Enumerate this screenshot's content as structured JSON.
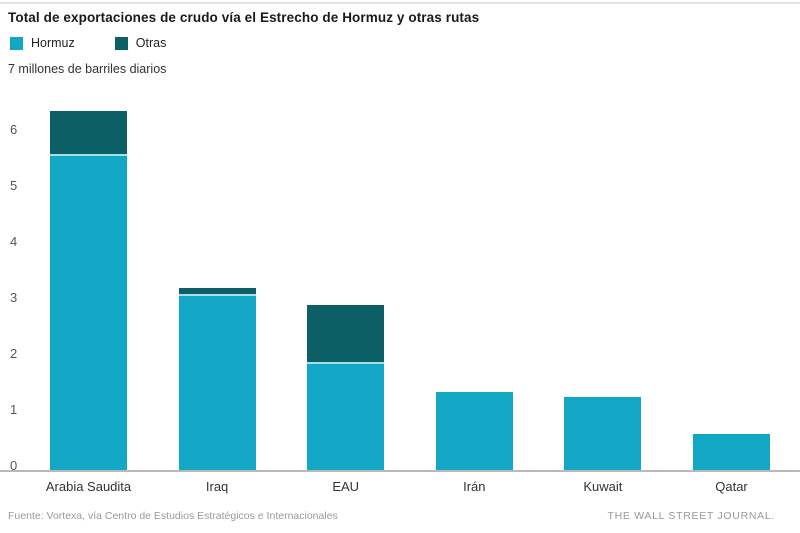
{
  "header": {
    "title": "Total de exportaciones de crudo vía el Estrecho de Hormuz y otras rutas",
    "subtitle": "7 millones de barriles diarios"
  },
  "legend": [
    {
      "label": "Hormuz",
      "color": "#12a7c4"
    },
    {
      "label": "Otras",
      "color": "#0d5f66"
    }
  ],
  "chart_data": {
    "type": "bar",
    "stacked": true,
    "title": "Total de exportaciones de crudo vía el Estrecho de Hormuz y otras rutas",
    "unit_label": "7 millones de barriles diarios",
    "categories": [
      "Arabia Saudita",
      "Iraq",
      "EAU",
      "Irán",
      "Kuwait",
      "Qatar"
    ],
    "series": [
      {
        "name": "Hormuz",
        "color": "#12a7c4",
        "values": [
          5.6,
          3.1,
          1.9,
          1.4,
          1.3,
          0.65
        ]
      },
      {
        "name": "Otras",
        "color": "#0d5f66",
        "values": [
          0.8,
          0.15,
          1.05,
          0,
          0,
          0
        ]
      }
    ],
    "totals": [
      6.4,
      3.25,
      2.95,
      1.4,
      1.3,
      0.65
    ],
    "ylabel": "millones de barriles diarios",
    "ylim": [
      0,
      7
    ],
    "yticks": [
      0,
      1,
      2,
      3,
      4,
      5,
      6
    ],
    "grid": false,
    "legend_position": "top-left"
  },
  "footer": {
    "source": "Fuente: Vortexa, vía Centro de Estudios Estratégicos e Internacionales",
    "credit": "THE WALL STREET JOURNAL."
  }
}
